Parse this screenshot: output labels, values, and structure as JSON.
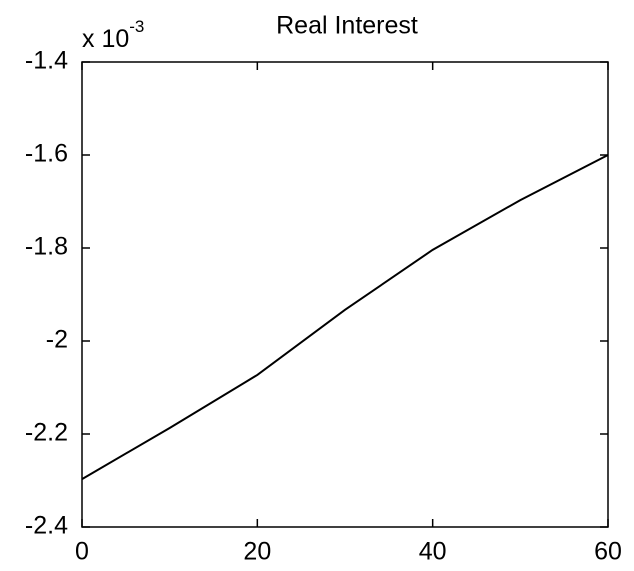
{
  "chart_data": {
    "type": "line",
    "title": "Real Interest",
    "y_multiplier": {
      "base": "x 10",
      "exponent": "-3"
    },
    "x": [
      0,
      10,
      20,
      30,
      40,
      50,
      60
    ],
    "series": [
      {
        "color": "#000000",
        "values": [
          -2.297,
          -2.187,
          -2.073,
          -1.933,
          -1.804,
          -1.697,
          -1.6
        ]
      }
    ],
    "xlim": [
      0,
      60
    ],
    "xticks": [
      0,
      20,
      40,
      60
    ],
    "ylim": [
      -2.4,
      -1.4
    ],
    "yticks": [
      -2.4,
      -2.2,
      -2,
      -1.8,
      -1.6,
      -1.4
    ],
    "grid": false
  }
}
